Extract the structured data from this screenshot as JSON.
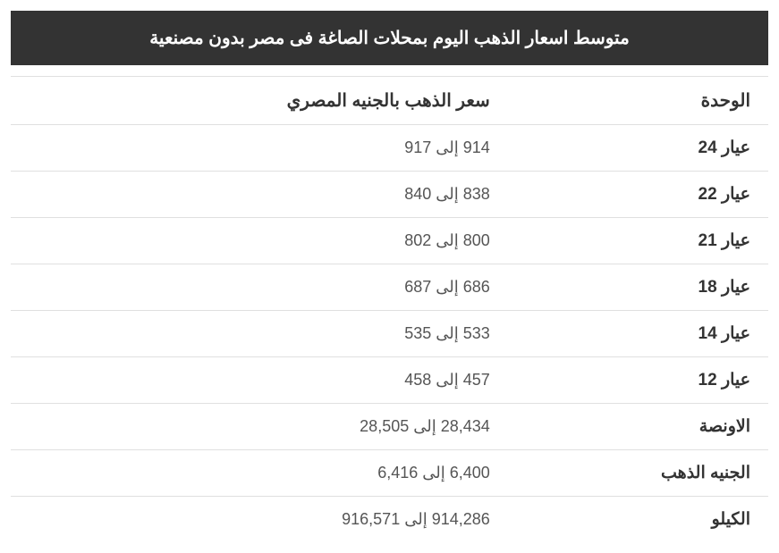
{
  "title": "متوسط اسعار الذهب اليوم بمحلات الصاغة فى مصر بدون مصنعية",
  "columns": {
    "unit": "الوحدة",
    "price": "سعر الذهب بالجنيه المصري"
  },
  "rows": [
    {
      "unit": "عيار 24",
      "price": "914 إلى 917"
    },
    {
      "unit": "عيار 22",
      "price": "838 إلى 840"
    },
    {
      "unit": "عيار 21",
      "price": "800 إلى 802"
    },
    {
      "unit": "عيار 18",
      "price": "686 إلى 687"
    },
    {
      "unit": "عيار 14",
      "price": "533 إلى 535"
    },
    {
      "unit": "عيار 12",
      "price": "457 إلى 458"
    },
    {
      "unit": "الاونصة",
      "price": "28,434 إلى 28,505"
    },
    {
      "unit": "الجنيه الذهب",
      "price": "6,400 إلى 6,416"
    },
    {
      "unit": "الكيلو",
      "price": "914,286 إلى 916,571"
    }
  ],
  "styles": {
    "title_bg": "#333333",
    "title_color": "#ffffff",
    "border_color": "#e0e0e0",
    "text_color": "#555555",
    "header_color": "#333333",
    "background": "#ffffff"
  }
}
